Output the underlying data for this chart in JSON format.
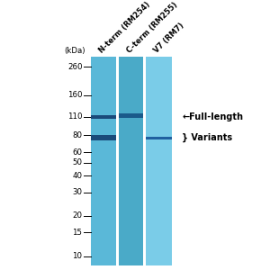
{
  "background_color": "#ffffff",
  "gel_bg_lane1": "#5ab8d8",
  "gel_bg_lane2": "#4aaac8",
  "gel_bg_lane3": "#7acce8",
  "lane_sep_color": "#c8eaf8",
  "kda_labels": [
    "(kDa)",
    "260",
    "160",
    "110",
    "80",
    "60",
    "50",
    "40",
    "30",
    "20",
    "15",
    "10"
  ],
  "kda_values": [
    null,
    260,
    160,
    110,
    80,
    60,
    50,
    40,
    30,
    20,
    15,
    10
  ],
  "lane_labels": [
    "N-term (RM254)",
    "C-term (RM255)",
    "V7 (RM7)"
  ],
  "band_color_dark": "#1a4a7a",
  "band_color_mid": "#1a5a8a",
  "band_color_lane3": "#2060a0",
  "band_full_lane1_kda": 110,
  "band_full_lane2_kda": 113,
  "band_var1_lane1_kda": 79,
  "band_var2_lane1_kda": 75,
  "band_var_lane3_kda": 76,
  "ann_full": "←Full-length",
  "ann_var": "} Variants",
  "tick_fontsize": 6.2,
  "label_fontsize": 6.0,
  "ann_fontsize": 7.0
}
